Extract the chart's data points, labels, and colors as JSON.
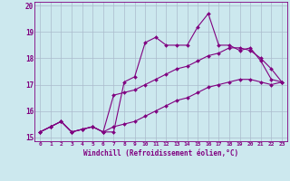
{
  "xlabel": "Windchill (Refroidissement éolien,°C)",
  "bg_color": "#cce8ee",
  "line_color": "#800080",
  "xlim": [
    -0.5,
    23.5
  ],
  "ylim": [
    14.85,
    20.15
  ],
  "xticks": [
    0,
    1,
    2,
    3,
    4,
    5,
    6,
    7,
    8,
    9,
    10,
    11,
    12,
    13,
    14,
    15,
    16,
    17,
    18,
    19,
    20,
    21,
    22,
    23
  ],
  "yticks": [
    15,
    16,
    17,
    18,
    19,
    20
  ],
  "line1_x": [
    0,
    1,
    2,
    3,
    4,
    5,
    6,
    7,
    8,
    9,
    10,
    11,
    12,
    13,
    14,
    15,
    16,
    17,
    18,
    19,
    20,
    21,
    22,
    23
  ],
  "line1_y": [
    15.2,
    15.4,
    15.6,
    15.2,
    15.3,
    15.4,
    15.2,
    15.2,
    17.1,
    17.3,
    18.6,
    18.8,
    18.5,
    18.5,
    18.5,
    19.2,
    19.7,
    18.5,
    18.5,
    18.3,
    18.4,
    17.9,
    17.2,
    17.1
  ],
  "line2_x": [
    0,
    1,
    2,
    3,
    4,
    5,
    6,
    7,
    8,
    9,
    10,
    11,
    12,
    13,
    14,
    15,
    16,
    17,
    18,
    19,
    20,
    21,
    22,
    23
  ],
  "line2_y": [
    15.2,
    15.4,
    15.6,
    15.2,
    15.3,
    15.4,
    15.2,
    16.6,
    16.7,
    16.8,
    17.0,
    17.2,
    17.4,
    17.6,
    17.7,
    17.9,
    18.1,
    18.2,
    18.4,
    18.4,
    18.3,
    18.0,
    17.6,
    17.1
  ],
  "line3_x": [
    0,
    1,
    2,
    3,
    4,
    5,
    6,
    7,
    8,
    9,
    10,
    11,
    12,
    13,
    14,
    15,
    16,
    17,
    18,
    19,
    20,
    21,
    22,
    23
  ],
  "line3_y": [
    15.2,
    15.4,
    15.6,
    15.2,
    15.3,
    15.4,
    15.2,
    15.4,
    15.5,
    15.6,
    15.8,
    16.0,
    16.2,
    16.4,
    16.5,
    16.7,
    16.9,
    17.0,
    17.1,
    17.2,
    17.2,
    17.1,
    17.0,
    17.1
  ],
  "grid_color": "#aabbcc",
  "markersize": 2.0,
  "linewidth": 0.8
}
